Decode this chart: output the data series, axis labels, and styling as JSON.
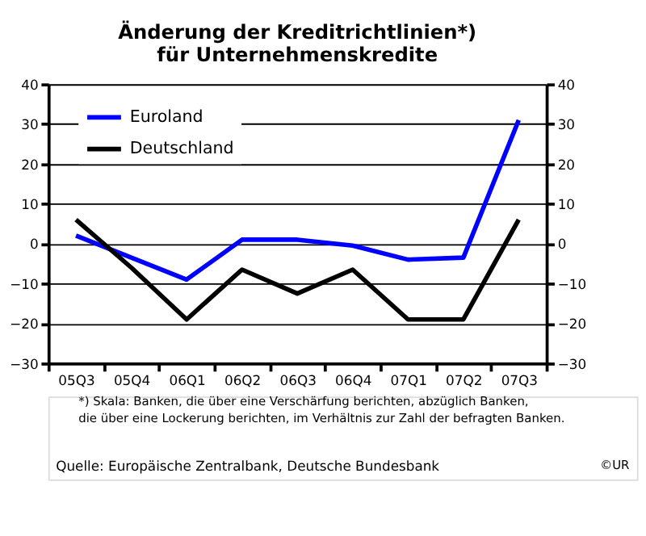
{
  "chart_data": {
    "type": "line",
    "title": "Änderung der Kreditrichtlinien*)\nfür Unternehmenskredite",
    "categories": [
      "05Q3",
      "05Q4",
      "06Q1",
      "06Q2",
      "06Q3",
      "06Q4",
      "07Q1",
      "07Q2",
      "07Q3"
    ],
    "series": [
      {
        "name": "Euroland",
        "color": "#0000ff",
        "values": [
          2,
          -3.5,
          -9,
          1,
          1,
          -0.5,
          -4,
          -3.5,
          31
        ]
      },
      {
        "name": "Deutschland",
        "color": "#000000",
        "values": [
          6,
          -6,
          -19,
          -6.5,
          -12.5,
          -6.5,
          -19,
          -19,
          6
        ]
      }
    ],
    "ylim": [
      -30,
      40
    ],
    "yticks": [
      -30,
      -20,
      -10,
      0,
      10,
      20,
      30,
      40
    ],
    "y2lim": [
      -30,
      40
    ],
    "y2ticks": [
      -30,
      -20,
      -10,
      0,
      10,
      20,
      30,
      40
    ],
    "grid": "y",
    "legend": "top left",
    "annotations": [
      "*) Skala: Banken, die über eine Verschärfung berichten, abzüglich Banken,\n die über eine Lockerung berichten, im Verhältnis zur Zahl der befragten Banken.",
      "Quelle: Europäische Zentralbank, Deutsche Bundesbank",
      "©UR"
    ]
  }
}
